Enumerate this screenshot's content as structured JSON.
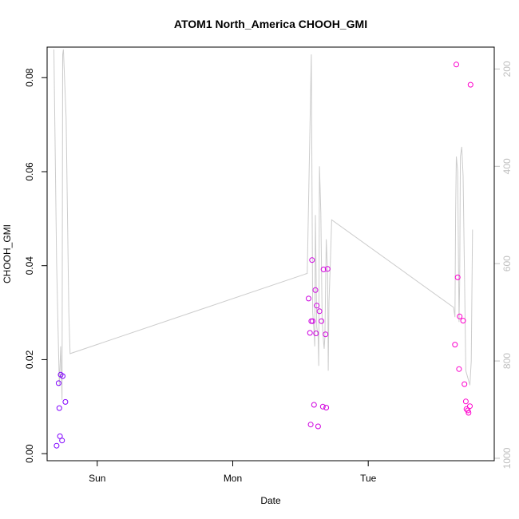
{
  "chart_data": {
    "type": "scatter",
    "title": "ATOM1 North_America CHOOH_GMI",
    "xlabel": "Date",
    "ylabel": "CHOOH_GMI",
    "x_unit": "days after Sat 00:00",
    "xlim": [
      0.63,
      3.93
    ],
    "ylim": [
      -0.0015,
      0.0865
    ],
    "x_ticks": [
      {
        "label": "Sun",
        "value": 1.0
      },
      {
        "label": "Mon",
        "value": 2.0
      },
      {
        "label": "Tue",
        "value": 3.0
      }
    ],
    "y_ticks": [
      {
        "label": "0.00",
        "value": 0.0
      },
      {
        "label": "0.02",
        "value": 0.02
      },
      {
        "label": "0.04",
        "value": 0.04
      },
      {
        "label": "0.06",
        "value": 0.06
      },
      {
        "label": "0.08",
        "value": 0.08
      }
    ],
    "right_axis": {
      "label": "",
      "reversed": true,
      "ylim": [
        1005,
        155
      ],
      "ticks": [
        {
          "label": "200",
          "value": 200
        },
        {
          "label": "400",
          "value": 400
        },
        {
          "label": "600",
          "value": 600
        },
        {
          "label": "800",
          "value": 800
        },
        {
          "label": "1000",
          "value": 1000
        }
      ],
      "color": "#bfbfbf"
    },
    "points": [
      {
        "x": 0.7,
        "y": 0.0017
      },
      {
        "x": 0.715,
        "y": 0.015
      },
      {
        "x": 0.72,
        "y": 0.0097
      },
      {
        "x": 0.725,
        "y": 0.0037
      },
      {
        "x": 0.73,
        "y": 0.0168
      },
      {
        "x": 0.74,
        "y": 0.0028
      },
      {
        "x": 0.745,
        "y": 0.0165
      },
      {
        "x": 0.765,
        "y": 0.011
      },
      {
        "x": 2.56,
        "y": 0.033
      },
      {
        "x": 2.57,
        "y": 0.0257
      },
      {
        "x": 2.575,
        "y": 0.0062
      },
      {
        "x": 2.58,
        "y": 0.0282
      },
      {
        "x": 2.585,
        "y": 0.0412
      },
      {
        "x": 2.59,
        "y": 0.0282
      },
      {
        "x": 2.6,
        "y": 0.0104
      },
      {
        "x": 2.61,
        "y": 0.0348
      },
      {
        "x": 2.615,
        "y": 0.0256
      },
      {
        "x": 2.62,
        "y": 0.0315
      },
      {
        "x": 2.63,
        "y": 0.0058
      },
      {
        "x": 2.64,
        "y": 0.0303
      },
      {
        "x": 2.655,
        "y": 0.0282
      },
      {
        "x": 2.665,
        "y": 0.01
      },
      {
        "x": 2.67,
        "y": 0.0392
      },
      {
        "x": 2.685,
        "y": 0.0254
      },
      {
        "x": 2.69,
        "y": 0.0098
      },
      {
        "x": 2.7,
        "y": 0.0393
      },
      {
        "x": 3.64,
        "y": 0.0232
      },
      {
        "x": 3.65,
        "y": 0.0828
      },
      {
        "x": 3.66,
        "y": 0.0375
      },
      {
        "x": 3.67,
        "y": 0.018
      },
      {
        "x": 3.675,
        "y": 0.0292
      },
      {
        "x": 3.7,
        "y": 0.0283
      },
      {
        "x": 3.71,
        "y": 0.0148
      },
      {
        "x": 3.72,
        "y": 0.0111
      },
      {
        "x": 3.725,
        "y": 0.0095
      },
      {
        "x": 3.735,
        "y": 0.0092
      },
      {
        "x": 3.74,
        "y": 0.0087
      },
      {
        "x": 3.75,
        "y": 0.0101
      },
      {
        "x": 3.755,
        "y": 0.0785
      }
    ],
    "point_color_from": "#7f00ff",
    "point_color_to": "#ff00cc",
    "pressure_line": {
      "color": "#cccccc",
      "x": [
        0.68,
        0.7,
        0.72,
        0.73,
        0.74,
        0.745,
        0.75,
        0.77,
        0.79,
        0.8,
        2.55,
        2.58,
        2.59,
        2.6,
        2.605,
        2.61,
        2.62,
        2.63,
        2.635,
        2.64,
        2.65,
        2.66,
        2.67,
        2.675,
        2.68,
        2.69,
        2.7,
        2.705,
        2.71,
        2.72,
        2.73,
        3.63,
        3.64,
        3.645,
        3.65,
        3.66,
        3.67,
        3.675,
        3.68,
        3.69,
        3.7,
        3.72,
        3.75,
        3.76,
        3.77
      ],
      "y": [
        160,
        600,
        850,
        770,
        880,
        170,
        160,
        300,
        700,
        785,
        620,
        170,
        700,
        740,
        770,
        500,
        730,
        750,
        810,
        400,
        495,
        720,
        760,
        775,
        750,
        550,
        620,
        820,
        680,
        600,
        510,
        690,
        710,
        500,
        380,
        410,
        720,
        640,
        380,
        360,
        420,
        820,
        850,
        800,
        530
      ]
    }
  }
}
